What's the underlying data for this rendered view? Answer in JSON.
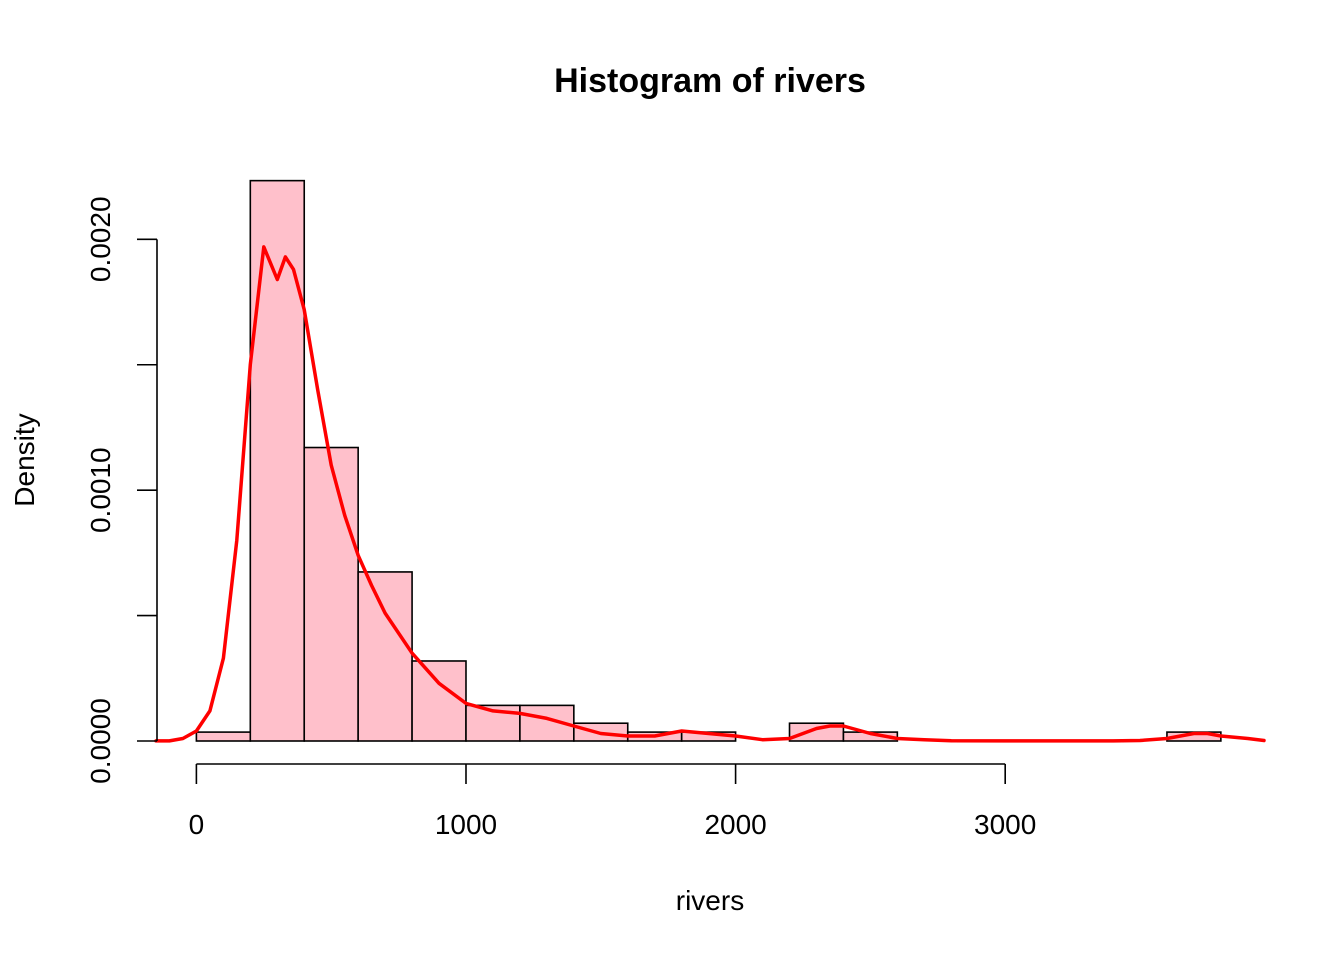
{
  "chart_data": {
    "type": "bar",
    "title": "Histogram of rivers",
    "xlabel": "rivers",
    "ylabel": "Density",
    "xlim": [
      -135,
      3960
    ],
    "ylim": [
      0,
      0.0024
    ],
    "x_ticks": [
      0,
      1000,
      2000,
      3000
    ],
    "x_tick_labels": [
      "0",
      "1000",
      "2000",
      "3000"
    ],
    "y_ticks": [
      0,
      0.0005,
      0.001,
      0.0015,
      0.002
    ],
    "y_tick_labels": [
      "0.0000",
      "",
      "0.0010",
      "",
      "0.0020"
    ],
    "bin_width": 200,
    "bins": [
      {
        "from": 0,
        "to": 200,
        "density": 3.55e-05
      },
      {
        "from": 200,
        "to": 400,
        "density": 0.002234
      },
      {
        "from": 400,
        "to": 600,
        "density": 0.00117
      },
      {
        "from": 600,
        "to": 800,
        "density": 0.000674
      },
      {
        "from": 800,
        "to": 1000,
        "density": 0.000319
      },
      {
        "from": 1000,
        "to": 1200,
        "density": 0.000142
      },
      {
        "from": 1200,
        "to": 1400,
        "density": 0.000142
      },
      {
        "from": 1400,
        "to": 1600,
        "density": 7.09e-05
      },
      {
        "from": 1600,
        "to": 1800,
        "density": 3.55e-05
      },
      {
        "from": 1800,
        "to": 2000,
        "density": 3.55e-05
      },
      {
        "from": 2000,
        "to": 2200,
        "density": 0
      },
      {
        "from": 2200,
        "to": 2400,
        "density": 7.09e-05
      },
      {
        "from": 2400,
        "to": 2600,
        "density": 3.55e-05
      },
      {
        "from": 2600,
        "to": 2800,
        "density": 0
      },
      {
        "from": 2800,
        "to": 3000,
        "density": 0
      },
      {
        "from": 3000,
        "to": 3200,
        "density": 0
      },
      {
        "from": 3200,
        "to": 3400,
        "density": 0
      },
      {
        "from": 3400,
        "to": 3600,
        "density": 0
      },
      {
        "from": 3600,
        "to": 3800,
        "density": 3.55e-05
      }
    ],
    "density_curve": {
      "x": [
        -150,
        -100,
        -50,
        0,
        50,
        100,
        150,
        200,
        250,
        300,
        330,
        360,
        400,
        450,
        500,
        550,
        600,
        650,
        700,
        800,
        900,
        1000,
        1100,
        1200,
        1300,
        1400,
        1500,
        1600,
        1700,
        1800,
        1900,
        2000,
        2100,
        2200,
        2300,
        2350,
        2400,
        2500,
        2600,
        2700,
        2800,
        3000,
        3200,
        3400,
        3500,
        3600,
        3700,
        3750,
        3800,
        3900,
        3960
      ],
      "y": [
        5e-07,
        5e-07,
        1e-05,
        4e-05,
        0.00012,
        0.00033,
        0.0008,
        0.0015,
        0.00197,
        0.00184,
        0.00193,
        0.00188,
        0.00172,
        0.0014,
        0.0011,
        0.0009,
        0.00074,
        0.00062,
        0.00051,
        0.00035,
        0.00023,
        0.00015,
        0.00012,
        0.00011,
        9e-05,
        6e-05,
        3e-05,
        2e-05,
        2e-05,
        4e-05,
        3e-05,
        2e-05,
        5e-06,
        1e-05,
        5e-05,
        6e-05,
        6e-05,
        3e-05,
        1e-05,
        5e-06,
        1e-06,
        5e-07,
        5e-07,
        5e-07,
        2e-06,
        1e-05,
        3e-05,
        3e-05,
        2e-05,
        1e-05,
        2e-06
      ]
    },
    "bar_fill": "#FFC0CB",
    "bar_stroke": "#000000",
    "line_color": "#FF0000",
    "grid": false,
    "legend": "none"
  }
}
